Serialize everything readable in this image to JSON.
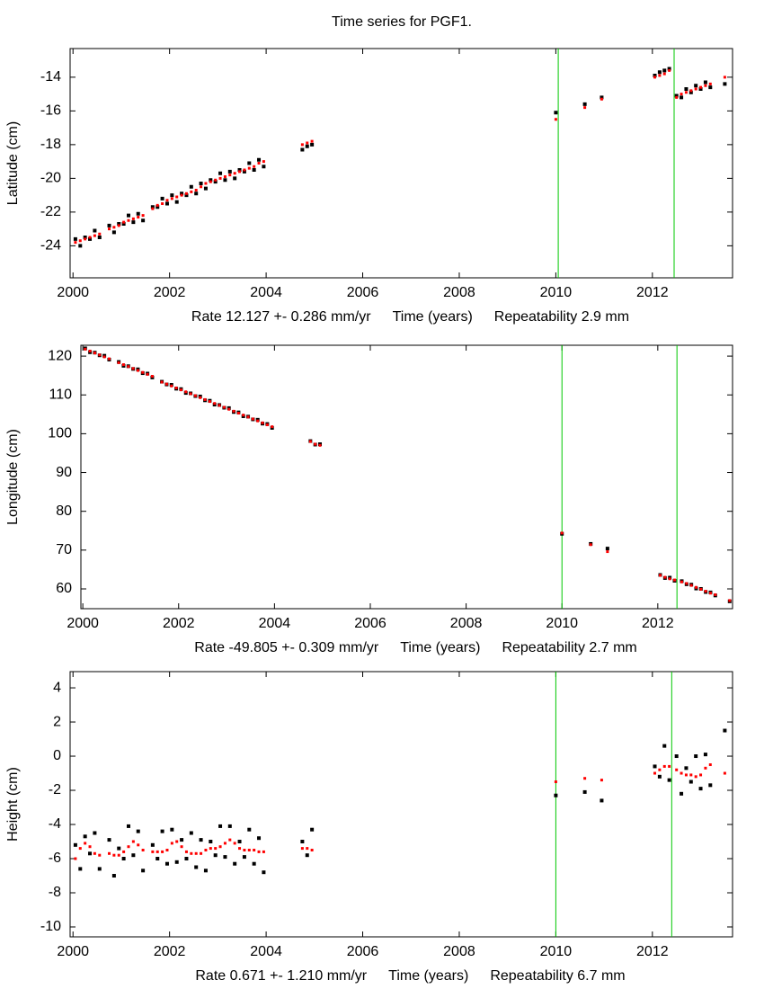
{
  "chart_data": [
    {
      "type": "scatter",
      "title": "Time series for PGF1.",
      "ylabel": "Latitude (cm)",
      "rate": "Rate 12.127 +- 0.286 mm/yr",
      "xlabel": "Time (years)",
      "repeatability": "Repeatability 2.9 mm",
      "xlim": [
        1999.94,
        2013.66
      ],
      "ylim": [
        -25.9,
        -12.3
      ],
      "xticks": [
        2000,
        2002,
        2004,
        2006,
        2008,
        2010,
        2012
      ],
      "yticks": [
        -24,
        -22,
        -20,
        -18,
        -16,
        -14
      ],
      "vlines": [
        {
          "x": 2010.05,
          "color": "#00c800"
        },
        {
          "x": 2012.45,
          "color": "#00c800"
        }
      ],
      "x": [
        2000.05,
        2000.15,
        2000.25,
        2000.35,
        2000.45,
        2000.55,
        2000.75,
        2000.85,
        2000.95,
        2001.05,
        2001.15,
        2001.25,
        2001.35,
        2001.45,
        2001.65,
        2001.75,
        2001.85,
        2001.95,
        2002.05,
        2002.15,
        2002.25,
        2002.35,
        2002.45,
        2002.55,
        2002.65,
        2002.75,
        2002.85,
        2002.95,
        2003.05,
        2003.15,
        2003.25,
        2003.35,
        2003.45,
        2003.55,
        2003.65,
        2003.75,
        2003.85,
        2003.95,
        2004.75,
        2004.85,
        2004.95,
        2010.0,
        2010.6,
        2010.95,
        2012.05,
        2012.15,
        2012.25,
        2012.35,
        2012.5,
        2012.6,
        2012.7,
        2012.8,
        2012.9,
        2013.0,
        2013.1,
        2013.2,
        2013.5
      ],
      "series": [
        {
          "color": "#000000",
          "values": [
            -23.6,
            -24.0,
            -23.5,
            -23.6,
            -23.1,
            -23.5,
            -22.8,
            -23.2,
            -22.7,
            -22.7,
            -22.2,
            -22.6,
            -22.1,
            -22.5,
            -21.7,
            -21.7,
            -21.2,
            -21.5,
            -21.0,
            -21.4,
            -20.9,
            -21.0,
            -20.5,
            -20.9,
            -20.3,
            -20.6,
            -20.1,
            -20.2,
            -19.7,
            -20.1,
            -19.6,
            -20.0,
            -19.5,
            -19.6,
            -19.1,
            -19.5,
            -18.9,
            -19.3,
            -18.3,
            -18.1,
            -18.0,
            -16.1,
            -15.6,
            -15.2,
            -13.9,
            -13.7,
            -13.6,
            -13.5,
            -15.1,
            -15.2,
            -14.7,
            -14.9,
            -14.5,
            -14.7,
            -14.3,
            -14.6,
            -14.4
          ]
        },
        {
          "color": "#ff0000",
          "values": [
            -23.8,
            -23.7,
            -23.6,
            -23.5,
            -23.4,
            -23.3,
            -23.0,
            -22.9,
            -22.8,
            -22.6,
            -22.5,
            -22.4,
            -22.3,
            -22.2,
            -21.8,
            -21.6,
            -21.5,
            -21.3,
            -21.2,
            -21.1,
            -21.0,
            -20.9,
            -20.8,
            -20.7,
            -20.5,
            -20.3,
            -20.2,
            -20.1,
            -20.0,
            -19.9,
            -19.8,
            -19.7,
            -19.6,
            -19.5,
            -19.4,
            -19.3,
            -19.1,
            -19.0,
            -18.0,
            -17.9,
            -17.8,
            -16.5,
            -15.8,
            -15.3,
            -14.0,
            -13.9,
            -13.8,
            -13.6,
            -15.2,
            -15.0,
            -14.9,
            -14.8,
            -14.7,
            -14.6,
            -14.5,
            -14.4,
            -14.0
          ]
        }
      ]
    },
    {
      "type": "scatter",
      "ylabel": "Longitude (cm)",
      "rate": "Rate -49.805 +- 0.309 mm/yr",
      "xlabel": "Time (years)",
      "repeatability": "Repeatability 2.7 mm",
      "xlim": [
        1999.96,
        2013.56
      ],
      "ylim": [
        54.9,
        122.8
      ],
      "xticks": [
        2000,
        2002,
        2004,
        2006,
        2008,
        2010,
        2012
      ],
      "yticks": [
        60,
        70,
        80,
        90,
        100,
        110,
        120
      ],
      "vlines": [
        {
          "x": 2010.0,
          "color": "#00c800"
        },
        {
          "x": 2012.4,
          "color": "#00c800"
        }
      ],
      "x": [
        2000.05,
        2000.15,
        2000.25,
        2000.35,
        2000.45,
        2000.55,
        2000.75,
        2000.85,
        2000.95,
        2001.05,
        2001.15,
        2001.25,
        2001.35,
        2001.45,
        2001.65,
        2001.75,
        2001.85,
        2001.95,
        2002.05,
        2002.15,
        2002.25,
        2002.35,
        2002.45,
        2002.55,
        2002.65,
        2002.75,
        2002.85,
        2002.95,
        2003.05,
        2003.15,
        2003.25,
        2003.35,
        2003.45,
        2003.55,
        2003.65,
        2003.75,
        2003.85,
        2003.95,
        2004.75,
        2004.85,
        2004.95,
        2010.0,
        2010.6,
        2010.95,
        2012.05,
        2012.15,
        2012.25,
        2012.35,
        2012.5,
        2012.6,
        2012.7,
        2012.8,
        2012.9,
        2013.0,
        2013.1,
        2013.2,
        2013.5
      ],
      "series": [
        {
          "color": "#000000",
          "values": [
            122.0,
            121.0,
            120.9,
            120.2,
            120.1,
            119.1,
            118.5,
            117.5,
            117.4,
            116.7,
            116.6,
            115.6,
            115.5,
            114.5,
            113.4,
            112.7,
            112.6,
            111.6,
            111.5,
            110.5,
            110.4,
            109.7,
            109.6,
            108.6,
            108.5,
            107.5,
            107.4,
            106.7,
            106.6,
            105.6,
            105.5,
            104.5,
            104.4,
            103.7,
            103.6,
            102.6,
            102.5,
            101.5,
            98.1,
            97.2,
            97.3,
            74.2,
            71.6,
            70.4,
            63.6,
            62.8,
            62.9,
            62.1,
            62.0,
            61.2,
            61.1,
            60.1,
            60.0,
            59.2,
            59.1,
            58.3,
            56.8
          ]
        },
        {
          "color": "#ff0000",
          "values": [
            121.8,
            121.3,
            120.8,
            120.3,
            119.8,
            119.3,
            118.3,
            117.8,
            117.3,
            116.8,
            116.3,
            115.8,
            115.3,
            114.8,
            113.3,
            112.8,
            112.3,
            111.8,
            111.3,
            110.8,
            110.3,
            109.8,
            109.3,
            108.8,
            108.3,
            107.8,
            107.3,
            106.8,
            106.3,
            105.8,
            105.3,
            104.8,
            104.3,
            103.8,
            103.3,
            102.8,
            102.3,
            101.8,
            98.0,
            97.3,
            97.0,
            74.4,
            71.4,
            69.6,
            63.5,
            63.0,
            62.6,
            62.3,
            61.8,
            61.4,
            60.9,
            60.4,
            59.9,
            59.4,
            58.9,
            58.5,
            57.0
          ]
        }
      ]
    },
    {
      "type": "scatter",
      "ylabel": "Height (cm)",
      "rate": "Rate 0.671 +- 1.210 mm/yr",
      "xlabel": "Time (years)",
      "repeatability": "Repeatability 6.7 mm",
      "xlim": [
        1999.94,
        2013.66
      ],
      "ylim": [
        -10.58,
        4.95
      ],
      "xticks": [
        2000,
        2002,
        2004,
        2006,
        2008,
        2010,
        2012
      ],
      "yticks": [
        -10,
        -8,
        -6,
        -4,
        -2,
        0,
        2,
        4
      ],
      "vlines": [
        {
          "x": 2010.0,
          "color": "#00c800"
        },
        {
          "x": 2012.4,
          "color": "#00c800"
        }
      ],
      "x": [
        2000.05,
        2000.15,
        2000.25,
        2000.35,
        2000.45,
        2000.55,
        2000.75,
        2000.85,
        2000.95,
        2001.05,
        2001.15,
        2001.25,
        2001.35,
        2001.45,
        2001.65,
        2001.75,
        2001.85,
        2001.95,
        2002.05,
        2002.15,
        2002.25,
        2002.35,
        2002.45,
        2002.55,
        2002.65,
        2002.75,
        2002.85,
        2002.95,
        2003.05,
        2003.15,
        2003.25,
        2003.35,
        2003.45,
        2003.55,
        2003.65,
        2003.75,
        2003.85,
        2003.95,
        2004.75,
        2004.85,
        2004.95,
        2010.0,
        2010.6,
        2010.95,
        2012.05,
        2012.15,
        2012.25,
        2012.35,
        2012.5,
        2012.6,
        2012.7,
        2012.8,
        2012.9,
        2013.0,
        2013.1,
        2013.2,
        2013.5
      ],
      "series": [
        {
          "color": "#000000",
          "values": [
            -5.2,
            -6.6,
            -4.7,
            -5.7,
            -4.5,
            -6.6,
            -4.9,
            -7.0,
            -5.4,
            -6.0,
            -4.1,
            -5.8,
            -4.4,
            -6.7,
            -5.2,
            -6.0,
            -4.4,
            -6.3,
            -4.3,
            -6.2,
            -4.9,
            -6.0,
            -4.5,
            -6.5,
            -4.9,
            -6.7,
            -5.0,
            -5.8,
            -4.1,
            -5.9,
            -4.1,
            -6.3,
            -5.0,
            -5.9,
            -4.3,
            -6.3,
            -4.8,
            -6.8,
            -5.0,
            -5.8,
            -4.3,
            -2.3,
            -2.1,
            -2.6,
            -0.6,
            -1.2,
            0.6,
            -1.4,
            0.0,
            -2.2,
            -0.7,
            -1.5,
            0.0,
            -1.9,
            0.1,
            -1.7,
            1.5
          ]
        },
        {
          "color": "#ff0000",
          "values": [
            -6.0,
            -5.4,
            -5.1,
            -5.3,
            -5.7,
            -5.8,
            -5.7,
            -5.8,
            -5.8,
            -5.6,
            -5.3,
            -5.0,
            -5.2,
            -5.5,
            -5.6,
            -5.6,
            -5.6,
            -5.5,
            -5.1,
            -5.0,
            -5.3,
            -5.6,
            -5.7,
            -5.7,
            -5.7,
            -5.5,
            -5.4,
            -5.4,
            -5.3,
            -5.1,
            -4.9,
            -5.1,
            -5.4,
            -5.5,
            -5.5,
            -5.5,
            -5.6,
            -5.6,
            -5.4,
            -5.4,
            -5.5,
            -1.5,
            -1.3,
            -1.4,
            -1.0,
            -0.8,
            -0.6,
            -0.6,
            -0.8,
            -1.0,
            -1.1,
            -1.1,
            -1.2,
            -1.1,
            -0.7,
            -0.5,
            -1.0
          ]
        }
      ]
    }
  ]
}
